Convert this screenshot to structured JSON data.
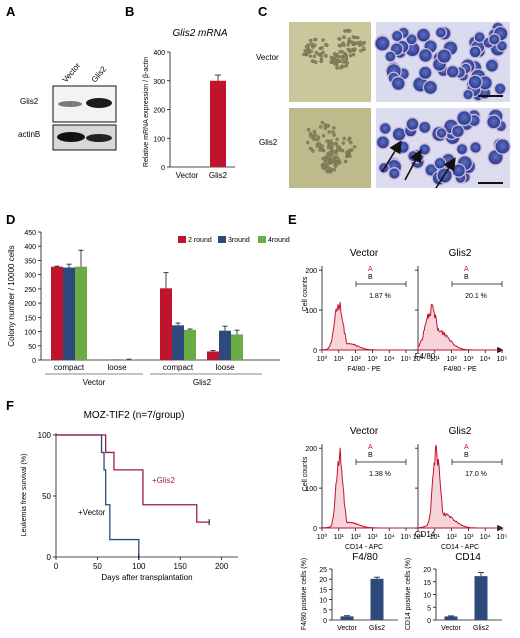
{
  "panel_labels": {
    "A": "A",
    "B": "B",
    "C": "C",
    "D": "D",
    "E": "E",
    "F": "F"
  },
  "panelA": {
    "lanes": [
      "Vector",
      "Glis2"
    ],
    "rows": [
      "Glis2",
      "actinB"
    ]
  },
  "panelC": {
    "rows": [
      "Vector",
      "Glis2"
    ]
  },
  "chart_data": [
    {
      "id": "B",
      "type": "bar",
      "title": "Glis2 mRNA",
      "ylabel": "Relative mRNA expression / β-actin",
      "categories": [
        "Vector",
        "Glis2"
      ],
      "values": [
        1,
        300
      ],
      "errors": [
        0,
        20
      ],
      "yticks": [
        "0",
        "100",
        "200",
        "300",
        "400"
      ],
      "ylim": [
        0,
        400
      ],
      "color": "#c0142d"
    },
    {
      "id": "D",
      "type": "bar",
      "ylabel": "Colony number / 10000 cells",
      "yticks": [
        "0",
        "50",
        "100",
        "150",
        "200",
        "250",
        "300",
        "350",
        "400",
        "450"
      ],
      "ylim": [
        0,
        450
      ],
      "legend": [
        "2 round",
        "3round",
        "4round"
      ],
      "colors": [
        "#c0142d",
        "#2e4a7d",
        "#6aac45"
      ],
      "groups": [
        {
          "sub": "compact",
          "group": "Vector",
          "values": [
            328,
            325,
            328
          ],
          "errors": [
            2,
            12,
            58
          ]
        },
        {
          "sub": "loose",
          "group": "Vector",
          "values": [
            1,
            2,
            2
          ],
          "errors": [
            0,
            0,
            1
          ]
        },
        {
          "sub": "compact",
          "group": "Glis2",
          "values": [
            252,
            122,
            106
          ],
          "errors": [
            55,
            8,
            3
          ]
        },
        {
          "sub": "loose",
          "group": "Glis2",
          "values": [
            30,
            103,
            90
          ],
          "errors": [
            3,
            16,
            15
          ]
        }
      ]
    },
    {
      "id": "E-F480-hist",
      "type": "area",
      "xlabel": "F4/80",
      "ylabel": "Cell counts",
      "panels": [
        {
          "title": "Vector",
          "gateA": "A",
          "gateB": "B",
          "pct": "1.87 %",
          "axislabel": "F4/80 - PE"
        },
        {
          "title": "Glis2",
          "gateA": "A",
          "gateB": "B",
          "pct": "20.1 %",
          "axislabel": "F4/80 - PE"
        }
      ],
      "yticks": [
        "0",
        "100",
        "200"
      ],
      "xticks": [
        "10⁰",
        "10¹",
        "10²",
        "10³",
        "10⁴",
        "10⁵"
      ],
      "color": "#c0142d"
    },
    {
      "id": "E-CD14-hist",
      "type": "area",
      "xlabel": "CD14",
      "ylabel": "Cell counts",
      "panels": [
        {
          "title": "Vector",
          "gateA": "A",
          "gateB": "B",
          "pct": "1.38 %",
          "axislabel": "CD14 - APC"
        },
        {
          "title": "Glis2",
          "gateA": "A",
          "gateB": "B",
          "pct": "17.0 %",
          "axislabel": "CD14 - APC"
        }
      ],
      "yticks": [
        "0",
        "100",
        "200"
      ],
      "xticks": [
        "10⁰",
        "10¹",
        "10²",
        "10³",
        "10⁴",
        "10⁵"
      ],
      "color": "#c0142d"
    },
    {
      "id": "E-F480-bar",
      "type": "bar",
      "title": "F4/80",
      "ylabel": "F4/80 positive cells (%)",
      "categories": [
        "Vector",
        "Glis2"
      ],
      "values": [
        1.8,
        20.2
      ],
      "errors": [
        0.3,
        0.8
      ],
      "yticks": [
        "0",
        "5",
        "10",
        "15",
        "20",
        "25"
      ],
      "ylim": [
        0,
        25
      ],
      "color": "#2e4a7d"
    },
    {
      "id": "E-CD14-bar",
      "type": "bar",
      "title": "CD14",
      "ylabel": "CD14 positive cells (%)",
      "categories": [
        "Vector",
        "Glis2"
      ],
      "values": [
        1.4,
        17.2
      ],
      "errors": [
        0.2,
        1.4
      ],
      "yticks": [
        "0",
        "5",
        "10",
        "15",
        "20"
      ],
      "ylim": [
        0,
        20
      ],
      "color": "#2e4a7d"
    },
    {
      "id": "F",
      "type": "line",
      "title": "MOZ-TIF2 (n=7/group)",
      "xlabel": "Days after transplantation",
      "ylabel": "Leukemia free survival (%)",
      "xticks": [
        "0",
        "50",
        "100",
        "150",
        "200"
      ],
      "yticks": [
        "0",
        "50",
        "100"
      ],
      "xlim": [
        0,
        200
      ],
      "ylim": [
        0,
        100
      ],
      "series": [
        {
          "name": "+Vector",
          "color": "#2e4a7d",
          "x": [
            0,
            55,
            58,
            60,
            65,
            100,
            100
          ],
          "y": [
            100,
            85.7,
            71.4,
            42.8,
            14.3,
            14.3,
            0
          ]
        },
        {
          "name": "+Glis2",
          "color": "#9b1b4a",
          "x": [
            0,
            60,
            70,
            105,
            170,
            185,
            185
          ],
          "y": [
            100,
            85.7,
            71.4,
            42.8,
            28.6,
            28.6,
            28.6
          ]
        }
      ]
    }
  ]
}
